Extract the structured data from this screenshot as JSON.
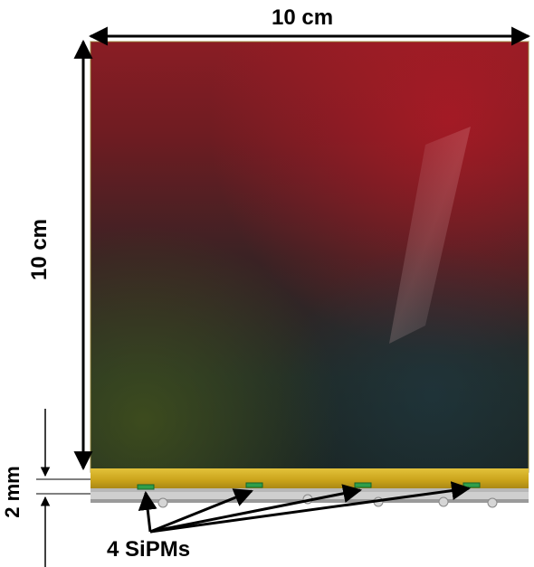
{
  "dimensions": {
    "width_label": "10 cm",
    "height_label": "10 cm",
    "thickness_label": "2 mm"
  },
  "annotation": {
    "sipm_label": "4 SiPMs",
    "sipm_count": 4
  },
  "colors": {
    "tile_red": "#8c1a22",
    "tile_dark": "#1c2a28",
    "tile_green_tint": "#3a4a1e",
    "frame_gold": "#c9a21a",
    "sipm_green": "#2e9e4a",
    "arrow": "#000000"
  }
}
